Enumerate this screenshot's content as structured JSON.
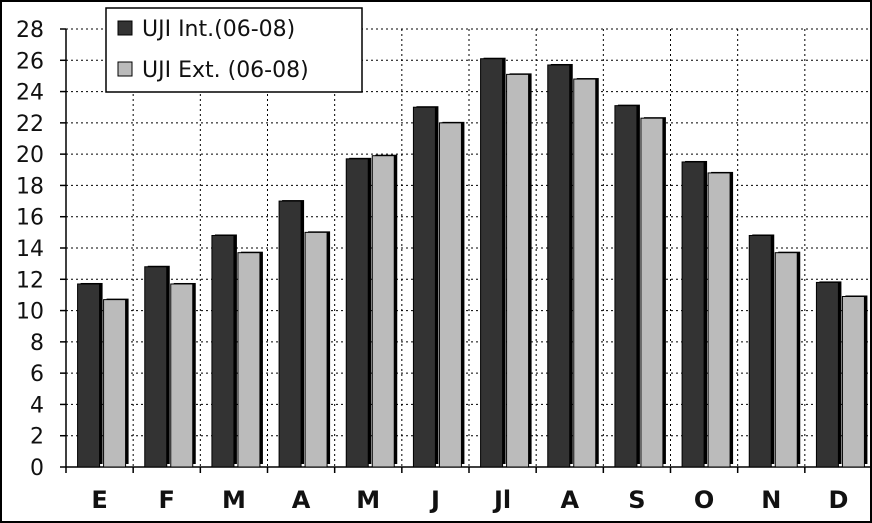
{
  "chart_data": {
    "type": "bar",
    "categories": [
      "E",
      "F",
      "M",
      "A",
      "M",
      "J",
      "Jl",
      "A",
      "S",
      "O",
      "N",
      "D"
    ],
    "series": [
      {
        "name": "UJI Int.(06-08)",
        "values": [
          11.7,
          12.8,
          14.8,
          17.0,
          19.7,
          23.0,
          26.1,
          25.7,
          23.1,
          19.5,
          14.8,
          11.8
        ]
      },
      {
        "name": "UJI Ext. (06-08)",
        "values": [
          10.7,
          11.7,
          13.7,
          15.0,
          19.9,
          22.0,
          25.1,
          24.8,
          22.3,
          18.8,
          13.7,
          10.9
        ]
      }
    ],
    "title": "",
    "xlabel": "",
    "ylabel": "",
    "ylim": [
      0,
      28
    ],
    "yticks": [
      0,
      2,
      4,
      6,
      8,
      10,
      12,
      14,
      16,
      18,
      20,
      22,
      24,
      26,
      28
    ],
    "grid": true,
    "legend_position": "top-left",
    "colors": [
      "#333333",
      "#bbbbbb"
    ]
  }
}
